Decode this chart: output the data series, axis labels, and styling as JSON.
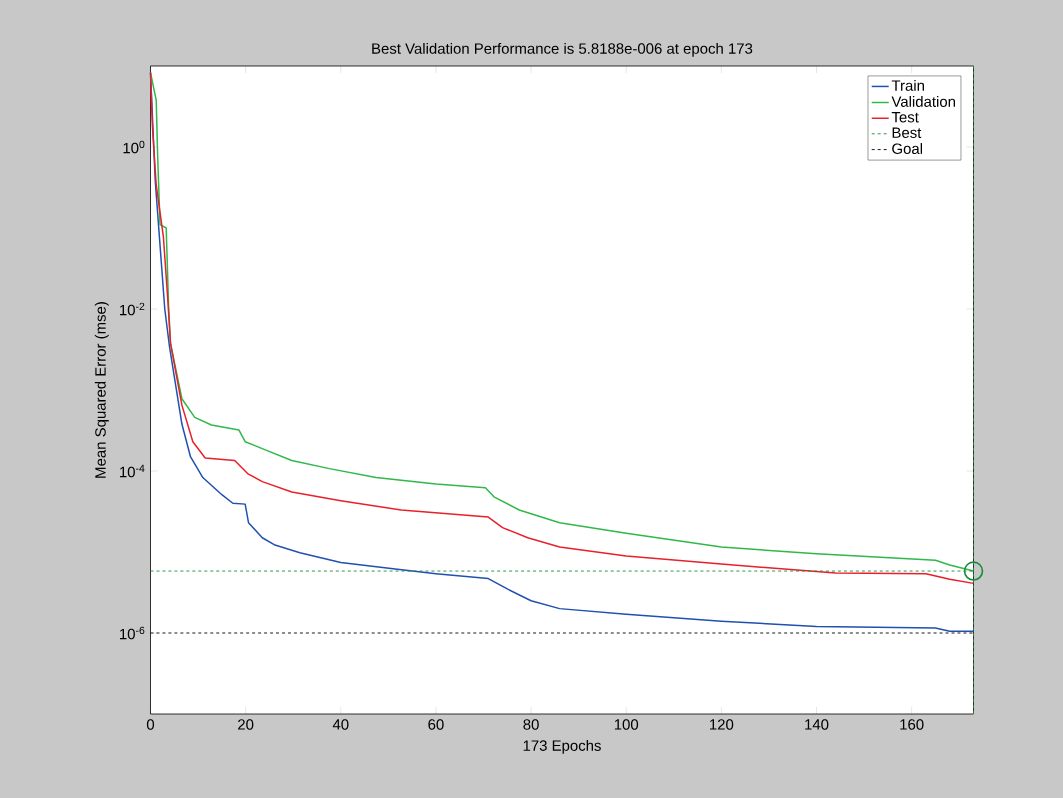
{
  "chart_data": {
    "type": "line",
    "title": "Best Validation Performance is 5.8188e-006 at epoch 173",
    "xlabel": "173 Epochs",
    "ylabel": "Mean Squared Error  (mse)",
    "log": "y",
    "xlim": [
      0,
      173
    ],
    "ylim": [
      1e-07,
      10
    ],
    "xticks": [
      0,
      20,
      40,
      60,
      80,
      100,
      120,
      140,
      160
    ],
    "yticks": [
      {
        "value": 1e-06,
        "label": "10$^{-6}$"
      },
      {
        "value": 0.0001,
        "label": "10$^{-4}$"
      },
      {
        "value": 0.01,
        "label": "10$^{-2}$"
      },
      {
        "value": 1,
        "label": "10$^{0}$"
      }
    ],
    "grid": false,
    "legend": "top right",
    "marker": "none",
    "series": [
      {
        "name": "Train",
        "color": "#2050b0",
        "line_style": "solid",
        "x": [
          0,
          1,
          3,
          4,
          6.6,
          8.4,
          11,
          15,
          17.3,
          19.9,
          20.6,
          23.5,
          26,
          31.4,
          40,
          51,
          60,
          71,
          75,
          80,
          86,
          100,
          120,
          140,
          165,
          168,
          173
        ],
        "values": [
          8.3,
          0.38,
          0.01,
          0.0034,
          0.00038,
          0.00015,
          8.3e-05,
          5.1e-05,
          4e-05,
          3.9e-05,
          2.3e-05,
          1.5e-05,
          1.23e-05,
          9.8e-06,
          7.4e-06,
          6.2e-06,
          5.4e-06,
          4.7e-06,
          3.5e-06,
          2.5e-06,
          2e-06,
          1.7e-06,
          1.4e-06,
          1.2e-06,
          1.15e-06,
          1.05e-06,
          1.05e-06
        ]
      },
      {
        "name": "Validation",
        "color": "#30b848",
        "line_style": "solid",
        "x": [
          0,
          1.2,
          1.5,
          2,
          3.3,
          3.8,
          4.2,
          6.6,
          9.3,
          12.8,
          18.6,
          19.9,
          24.4,
          29.7,
          37.6,
          47.4,
          60,
          70.4,
          72.2,
          77.5,
          86,
          100,
          120,
          140,
          165,
          168,
          173
        ],
        "values": [
          8.3,
          3.8,
          0.79,
          0.11,
          0.1,
          0.011,
          0.0038,
          0.00078,
          0.00046,
          0.00037,
          0.00032,
          0.00023,
          0.00018,
          0.000135,
          0.000107,
          8.3e-05,
          6.9e-05,
          6.2e-05,
          4.8e-05,
          3.3e-05,
          2.3e-05,
          1.7e-05,
          1.15e-05,
          9.5e-06,
          7.9e-06,
          6.9e-06,
          5.8188e-06
        ]
      },
      {
        "name": "Test",
        "color": "#e8202a",
        "line_style": "solid",
        "x": [
          0,
          0.4,
          1.2,
          2.7,
          3.6,
          4.2,
          6.6,
          8.9,
          11.5,
          17.7,
          20.4,
          23.5,
          29.7,
          40,
          52.7,
          71,
          74,
          79.3,
          86,
          100,
          120,
          144,
          163,
          168,
          173
        ],
        "values": [
          8.3,
          1.8,
          0.34,
          0.079,
          0.014,
          0.0038,
          0.00065,
          0.00023,
          0.000145,
          0.000135,
          9.3e-05,
          7.4e-05,
          5.5e-05,
          4.3e-05,
          3.3e-05,
          2.7e-05,
          2e-05,
          1.5e-05,
          1.15e-05,
          8.9e-06,
          7.1e-06,
          5.5e-06,
          5.4e-06,
          4.6e-06,
          4.1e-06
        ]
      },
      {
        "name": "Best",
        "color": "#1a8a3a",
        "line_style": "dashed",
        "x": [
          0,
          173
        ],
        "values": [
          5.8188e-06,
          5.8188e-06
        ]
      },
      {
        "name": "Goal",
        "color": "#000000",
        "line_style": "dashed",
        "x": [
          0,
          173
        ],
        "values": [
          1e-06,
          1e-06
        ]
      },
      {
        "type": "scatter",
        "marker": "circle",
        "color": "#1a8a3a",
        "x": [
          173
        ],
        "values": [
          5.8188e-06
        ]
      }
    ],
    "ref_lines": [
      {
        "axis": "x",
        "value": 173,
        "color": "#1a8a3a",
        "line_style": "dashed"
      }
    ]
  }
}
